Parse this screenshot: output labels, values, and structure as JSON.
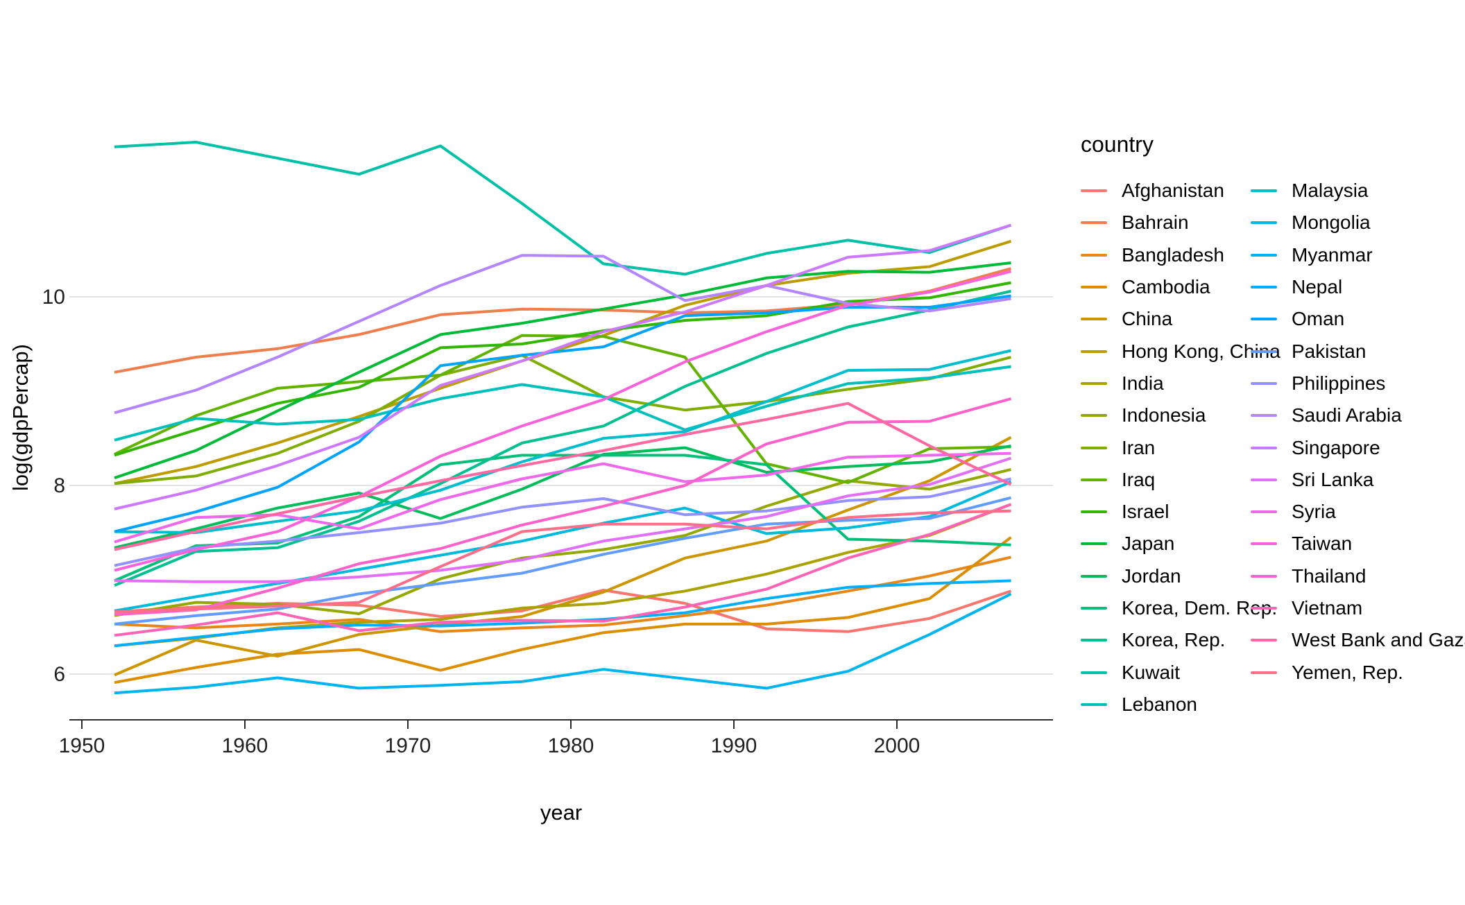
{
  "figure": {
    "background_color": "#FFFFFF",
    "text_color": "#1F1F1F",
    "grid_color": "#E3E3E3",
    "axis_line_color": "#2B2B2B"
  },
  "legend": {
    "title": "country",
    "column_split": 17
  },
  "chart_data": {
    "type": "line",
    "title": "",
    "xlabel": "year",
    "ylabel": "log(gdpPercap)",
    "x": [
      1952,
      1957,
      1962,
      1967,
      1972,
      1977,
      1982,
      1987,
      1992,
      1997,
      2002,
      2007
    ],
    "x_ticks": [
      1950,
      1960,
      1970,
      1980,
      1990,
      2000
    ],
    "y_ticks": [
      6,
      8,
      10
    ],
    "xlim": [
      1949.25,
      2009.75
    ],
    "ylim": [
      5.51,
      11.93
    ],
    "grid": "horizontal-major-only",
    "legend_position": "right",
    "series": [
      {
        "name": "Afghanistan",
        "color": "#F8766D",
        "values": [
          6.66,
          6.71,
          6.75,
          6.73,
          6.61,
          6.67,
          6.89,
          6.75,
          6.48,
          6.45,
          6.59,
          6.88
        ]
      },
      {
        "name": "Bahrain",
        "color": "#F07E4D",
        "values": [
          9.2,
          9.36,
          9.45,
          9.6,
          9.81,
          9.87,
          9.86,
          9.83,
          9.85,
          9.92,
          10.06,
          10.3
        ]
      },
      {
        "name": "Bangladesh",
        "color": "#E78619",
        "values": [
          6.53,
          6.49,
          6.53,
          6.58,
          6.45,
          6.49,
          6.52,
          6.62,
          6.73,
          6.88,
          7.04,
          7.24
        ]
      },
      {
        "name": "Cambodia",
        "color": "#DC8E00",
        "values": [
          5.91,
          6.07,
          6.21,
          6.26,
          6.04,
          6.26,
          6.44,
          6.53,
          6.53,
          6.6,
          6.8,
          7.45
        ]
      },
      {
        "name": "China",
        "color": "#CD9500",
        "values": [
          5.99,
          6.36,
          6.19,
          6.42,
          6.52,
          6.61,
          6.87,
          7.23,
          7.41,
          7.74,
          8.05,
          8.51
        ]
      },
      {
        "name": "Hong Kong, China",
        "color": "#BC9C00",
        "values": [
          8.02,
          8.2,
          8.45,
          8.73,
          9.03,
          9.32,
          9.59,
          9.91,
          10.12,
          10.25,
          10.32,
          10.59
        ]
      },
      {
        "name": "India",
        "color": "#AAA200",
        "values": [
          6.3,
          6.38,
          6.49,
          6.55,
          6.58,
          6.7,
          6.75,
          6.88,
          7.06,
          7.29,
          7.47,
          7.8
        ]
      },
      {
        "name": "Indonesia",
        "color": "#95A800",
        "values": [
          6.62,
          6.76,
          6.74,
          6.64,
          7.01,
          7.23,
          7.32,
          7.47,
          7.78,
          8.05,
          7.96,
          8.17
        ]
      },
      {
        "name": "Iran",
        "color": "#7FAD00",
        "values": [
          8.02,
          8.1,
          8.34,
          8.68,
          9.17,
          9.38,
          8.94,
          8.8,
          8.89,
          9.02,
          9.13,
          9.36
        ]
      },
      {
        "name": "Iraq",
        "color": "#64B200",
        "values": [
          8.33,
          8.74,
          9.03,
          9.1,
          9.17,
          9.59,
          9.58,
          9.36,
          8.23,
          8.03,
          8.39,
          8.41
        ]
      },
      {
        "name": "Israel",
        "color": "#32B600",
        "values": [
          8.32,
          8.59,
          8.87,
          9.04,
          9.46,
          9.5,
          9.64,
          9.75,
          9.8,
          9.95,
          9.99,
          10.15
        ]
      },
      {
        "name": "Japan",
        "color": "#00BA38",
        "values": [
          8.08,
          8.37,
          8.79,
          9.2,
          9.6,
          9.72,
          9.87,
          10.02,
          10.2,
          10.27,
          10.26,
          10.36
        ]
      },
      {
        "name": "Jordan",
        "color": "#00BD5C",
        "values": [
          7.34,
          7.54,
          7.76,
          7.92,
          7.65,
          7.96,
          8.33,
          8.4,
          8.14,
          8.2,
          8.25,
          8.42
        ]
      },
      {
        "name": "Korea, Dem. Rep.",
        "color": "#00BF78",
        "values": [
          6.99,
          7.36,
          7.39,
          7.67,
          8.22,
          8.32,
          8.32,
          8.32,
          8.22,
          7.43,
          7.41,
          7.37
        ]
      },
      {
        "name": "Korea, Rep.",
        "color": "#00C091",
        "values": [
          6.94,
          7.3,
          7.34,
          7.62,
          8.02,
          8.45,
          8.63,
          9.05,
          9.4,
          9.68,
          9.86,
          10.06
        ]
      },
      {
        "name": "Kuwait",
        "color": "#00C1A6",
        "values": [
          11.59,
          11.64,
          11.47,
          11.3,
          11.6,
          10.99,
          10.35,
          10.24,
          10.46,
          10.6,
          10.47,
          10.76
        ]
      },
      {
        "name": "Lebanon",
        "color": "#00C0BB",
        "values": [
          8.48,
          8.71,
          8.65,
          8.7,
          8.92,
          9.07,
          8.94,
          8.59,
          8.84,
          9.08,
          9.14,
          9.26
        ]
      },
      {
        "name": "Malaysia",
        "color": "#00BECD",
        "values": [
          7.51,
          7.5,
          7.62,
          7.73,
          7.95,
          8.25,
          8.5,
          8.57,
          8.89,
          9.22,
          9.23,
          9.43
        ]
      },
      {
        "name": "Mongolia",
        "color": "#00BADE",
        "values": [
          6.67,
          6.82,
          6.96,
          7.11,
          7.26,
          7.41,
          7.6,
          7.76,
          7.49,
          7.55,
          7.67,
          8.04
        ]
      },
      {
        "name": "Myanmar",
        "color": "#00B5ED",
        "values": [
          5.8,
          5.86,
          5.96,
          5.85,
          5.88,
          5.92,
          6.05,
          5.95,
          5.85,
          6.03,
          6.42,
          6.85
        ]
      },
      {
        "name": "Nepal",
        "color": "#00AEF9",
        "values": [
          6.3,
          6.39,
          6.48,
          6.52,
          6.51,
          6.54,
          6.58,
          6.65,
          6.8,
          6.92,
          6.96,
          6.99
        ]
      },
      {
        "name": "Oman",
        "color": "#00A4FF",
        "values": [
          7.51,
          7.72,
          7.98,
          8.46,
          9.27,
          9.38,
          9.47,
          9.8,
          9.83,
          9.89,
          9.89,
          10.01
        ]
      },
      {
        "name": "Pakistan",
        "color": "#619CFF",
        "values": [
          6.53,
          6.62,
          6.69,
          6.85,
          6.96,
          7.07,
          7.27,
          7.44,
          7.59,
          7.63,
          7.65,
          7.87
        ]
      },
      {
        "name": "Philippines",
        "color": "#9191FF",
        "values": [
          7.15,
          7.34,
          7.41,
          7.5,
          7.6,
          7.77,
          7.86,
          7.69,
          7.73,
          7.84,
          7.88,
          8.07
        ]
      },
      {
        "name": "Saudi Arabia",
        "color": "#B385FF",
        "values": [
          8.77,
          9.01,
          9.36,
          9.74,
          10.12,
          10.44,
          10.43,
          9.96,
          10.12,
          9.93,
          9.85,
          9.98
        ]
      },
      {
        "name": "Singapore",
        "color": "#CD79FF",
        "values": [
          7.75,
          7.95,
          8.21,
          8.51,
          9.06,
          9.32,
          9.63,
          9.84,
          10.12,
          10.42,
          10.49,
          10.76
        ]
      },
      {
        "name": "Sri Lanka",
        "color": "#E16FF8",
        "values": [
          6.99,
          6.98,
          6.98,
          7.03,
          7.1,
          7.21,
          7.41,
          7.54,
          7.67,
          7.89,
          8.01,
          8.29
        ]
      },
      {
        "name": "Syria",
        "color": "#EF67EB",
        "values": [
          7.4,
          7.66,
          7.69,
          7.54,
          7.85,
          8.07,
          8.23,
          8.04,
          8.11,
          8.3,
          8.32,
          8.34
        ]
      },
      {
        "name": "Taiwan",
        "color": "#F962DB",
        "values": [
          7.1,
          7.32,
          7.51,
          7.88,
          8.31,
          8.63,
          8.91,
          9.31,
          9.63,
          9.91,
          10.05,
          10.27
        ]
      },
      {
        "name": "Thailand",
        "color": "#FF61CA",
        "values": [
          6.63,
          6.68,
          6.91,
          7.17,
          7.33,
          7.58,
          7.78,
          8.0,
          8.44,
          8.67,
          8.68,
          8.92
        ]
      },
      {
        "name": "Vietnam",
        "color": "#FF63B6",
        "values": [
          6.41,
          6.52,
          6.65,
          6.46,
          6.55,
          6.57,
          6.56,
          6.71,
          6.9,
          7.23,
          7.48,
          7.8
        ]
      },
      {
        "name": "West Bank and Gaza",
        "color": "#FF68A0",
        "values": [
          7.32,
          7.51,
          7.7,
          7.88,
          8.05,
          8.21,
          8.37,
          8.54,
          8.7,
          8.87,
          8.42,
          8.01
        ]
      },
      {
        "name": "Yemen, Rep.",
        "color": "#FD6F88",
        "values": [
          6.66,
          6.69,
          6.72,
          6.76,
          7.14,
          7.51,
          7.59,
          7.59,
          7.54,
          7.66,
          7.71,
          7.73
        ]
      }
    ]
  }
}
